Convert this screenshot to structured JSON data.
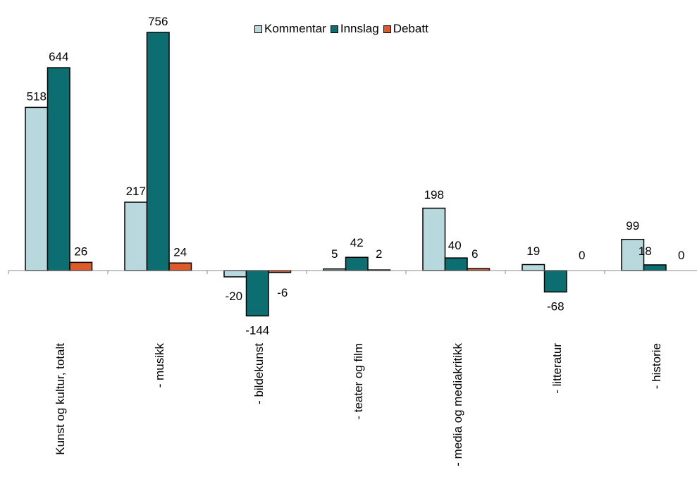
{
  "chart_data": {
    "type": "bar",
    "categories": [
      "Kunst og kultur, totalt",
      "- musikk",
      "- bildekunst",
      "- teater og film",
      "- media og mediakritikk",
      "- litteratur",
      "- historie"
    ],
    "series": [
      {
        "name": "Kommentar",
        "color": "#b7d9dd",
        "values": [
          518,
          217,
          -20,
          5,
          198,
          19,
          99
        ]
      },
      {
        "name": "Innslag",
        "color": "#0d6e72",
        "values": [
          644,
          756,
          -144,
          42,
          40,
          -68,
          18
        ]
      },
      {
        "name": "Debatt",
        "color": "#dd5a2a",
        "values": [
          26,
          24,
          -6,
          2,
          6,
          0,
          0
        ]
      }
    ],
    "data_labels": [
      [
        "518",
        "644",
        "26"
      ],
      [
        "217",
        "756",
        "24"
      ],
      [
        "-20",
        "-144",
        "-6"
      ],
      [
        "5",
        "42",
        "2"
      ],
      [
        "198",
        "40",
        "6"
      ],
      [
        "19",
        "-68",
        ""
      ],
      [
        "99",
        "18",
        "0"
      ]
    ],
    "extra_labels": [
      {
        "category_index": 5,
        "series_index": 2,
        "text": "0"
      }
    ],
    "title": "",
    "legend_position": "top-center",
    "grid": false
  }
}
